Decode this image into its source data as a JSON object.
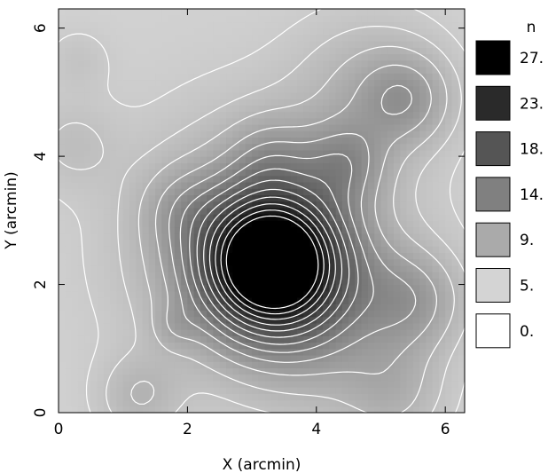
{
  "chart_data": {
    "type": "heatmap",
    "xlabel": "X (arcmin)",
    "ylabel": "Y (arcmin)",
    "xlim": [
      0,
      6.3
    ],
    "ylim": [
      0,
      6.3
    ],
    "xticks": [
      0,
      2,
      4,
      6
    ],
    "yticks": [
      0,
      2,
      4,
      6
    ],
    "xtick_labels": [
      "0",
      "2",
      "4",
      "6"
    ],
    "ytick_labels": [
      "0",
      "2",
      "4",
      "6"
    ],
    "grid": false,
    "colormap": "grayscale (white = low, black = high)",
    "contours": "white",
    "legend": {
      "title": "n",
      "placement": "right",
      "levels": [
        {
          "label": "27.",
          "value": 27,
          "color": "#000000"
        },
        {
          "label": "23.",
          "value": 23,
          "color": "#2a2a2a"
        },
        {
          "label": "18.",
          "value": 18,
          "color": "#555555"
        },
        {
          "label": "14.",
          "value": 14,
          "color": "#808080"
        },
        {
          "label": "9.",
          "value": 9,
          "color": "#aaaaaa"
        },
        {
          "label": "5.",
          "value": 5,
          "color": "#d4d4d4"
        },
        {
          "label": "0.",
          "value": 0,
          "color": "#ffffff"
        }
      ]
    },
    "features": [
      {
        "x": 3.3,
        "y": 2.35,
        "peak": 27,
        "width": 0.75
      },
      {
        "x": 3.2,
        "y": 2.6,
        "peak": 6,
        "width": 1.4
      },
      {
        "x": 4.45,
        "y": 3.9,
        "peak": 5,
        "width": 0.45
      },
      {
        "x": 5.4,
        "y": 4.9,
        "peak": 5,
        "width": 0.5
      },
      {
        "x": 5.5,
        "y": 1.75,
        "peak": 5,
        "width": 0.55
      },
      {
        "x": 3.3,
        "y": 4.0,
        "peak": 3,
        "width": 0.45
      },
      {
        "x": 1.9,
        "y": 3.2,
        "peak": 2.5,
        "width": 0.45
      },
      {
        "x": 4.8,
        "y": 5.1,
        "peak": 3,
        "width": 0.8
      },
      {
        "x": 1.25,
        "y": 0.25,
        "peak": 3,
        "width": 0.45
      },
      {
        "x": 5.2,
        "y": 0.3,
        "peak": 3,
        "width": 0.55
      },
      {
        "x": 0.2,
        "y": 4.2,
        "peak": 2,
        "width": 0.5
      },
      {
        "x": 0.3,
        "y": 5.5,
        "peak": 1.5,
        "width": 0.35
      },
      {
        "x": 1.8,
        "y": 1.35,
        "peak": 2,
        "width": 0.25
      },
      {
        "x": 4.2,
        "y": 1.3,
        "peak": 3,
        "width": 0.9
      }
    ],
    "background_level": 2.6
  }
}
